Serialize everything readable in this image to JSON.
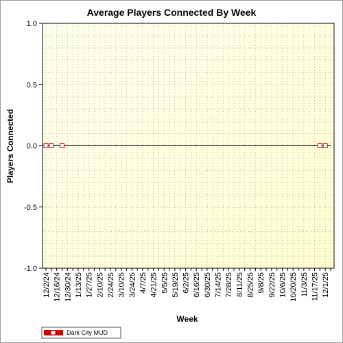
{
  "chart_data": {
    "type": "line",
    "title": "Average Players Connected By Week",
    "xlabel": "Week",
    "ylabel": "Players Connected",
    "ylim": [
      -1.0,
      1.0
    ],
    "y_ticks": [
      "1.0",
      "0.5",
      "0.0",
      "-0.5",
      "-1.0"
    ],
    "x_tick_labels": [
      "12/2/24",
      "12/16/24",
      "12/30/24",
      "1/13/25",
      "1/27/25",
      "2/10/25",
      "2/24/25",
      "3/10/25",
      "3/24/25",
      "4/7/25",
      "4/21/25",
      "5/5/25",
      "5/19/25",
      "6/2/25",
      "6/16/25",
      "6/30/25",
      "7/14/25",
      "7/28/25",
      "8/11/25",
      "8/25/25",
      "9/8/25",
      "9/22/25",
      "10/6/25",
      "10/20/25",
      "11/3/25",
      "11/17/25",
      "12/1/25"
    ],
    "x_weeks": [
      "12/2/24",
      "12/9/24",
      "12/16/24",
      "12/23/24",
      "12/30/24",
      "1/6/25",
      "1/13/25",
      "1/20/25",
      "1/27/25",
      "2/3/25",
      "2/10/25",
      "2/17/25",
      "2/24/25",
      "3/3/25",
      "3/10/25",
      "3/17/25",
      "3/24/25",
      "3/31/25",
      "4/7/25",
      "4/14/25",
      "4/21/25",
      "4/28/25",
      "5/5/25",
      "5/12/25",
      "5/19/25",
      "5/26/25",
      "6/2/25",
      "6/9/25",
      "6/16/25",
      "6/23/25",
      "6/30/25",
      "7/7/25",
      "7/14/25",
      "7/21/25",
      "7/28/25",
      "8/4/25",
      "8/11/25",
      "8/18/25",
      "8/25/25",
      "9/1/25",
      "9/8/25",
      "9/15/25",
      "9/22/25",
      "9/29/25",
      "10/6/25",
      "10/13/25",
      "10/20/25",
      "10/27/25",
      "11/3/25",
      "11/10/25",
      "11/17/25",
      "11/24/25",
      "12/1/25",
      "12/8/25"
    ],
    "series": [
      {
        "name": "Dark City MUD",
        "color": "#cc0000",
        "values": [
          0,
          0,
          0,
          0,
          0,
          0,
          0,
          0,
          0,
          0,
          0,
          0,
          0,
          0,
          0,
          0,
          0,
          0,
          0,
          0,
          0,
          0,
          0,
          0,
          0,
          0,
          0,
          0,
          0,
          0,
          0,
          0,
          0,
          0,
          0,
          0,
          0,
          0,
          0,
          0,
          0,
          0,
          0,
          0,
          0,
          0,
          0,
          0,
          0,
          0,
          0,
          0,
          0,
          0
        ],
        "marker_x": [
          "12/2/24",
          "12/9/24",
          "12/23/24",
          "11/24/25",
          "12/1/25"
        ],
        "marker_values": [
          0,
          0,
          0,
          0,
          0
        ]
      }
    ],
    "grid": true,
    "legend_position": "bottom-left",
    "colors": {
      "plot_bg_top": "#fffff0",
      "plot_bg_bottom": "#ffffd0",
      "grid": "#b4b4a0",
      "line": "#000000",
      "marker": "#cc0000"
    }
  }
}
